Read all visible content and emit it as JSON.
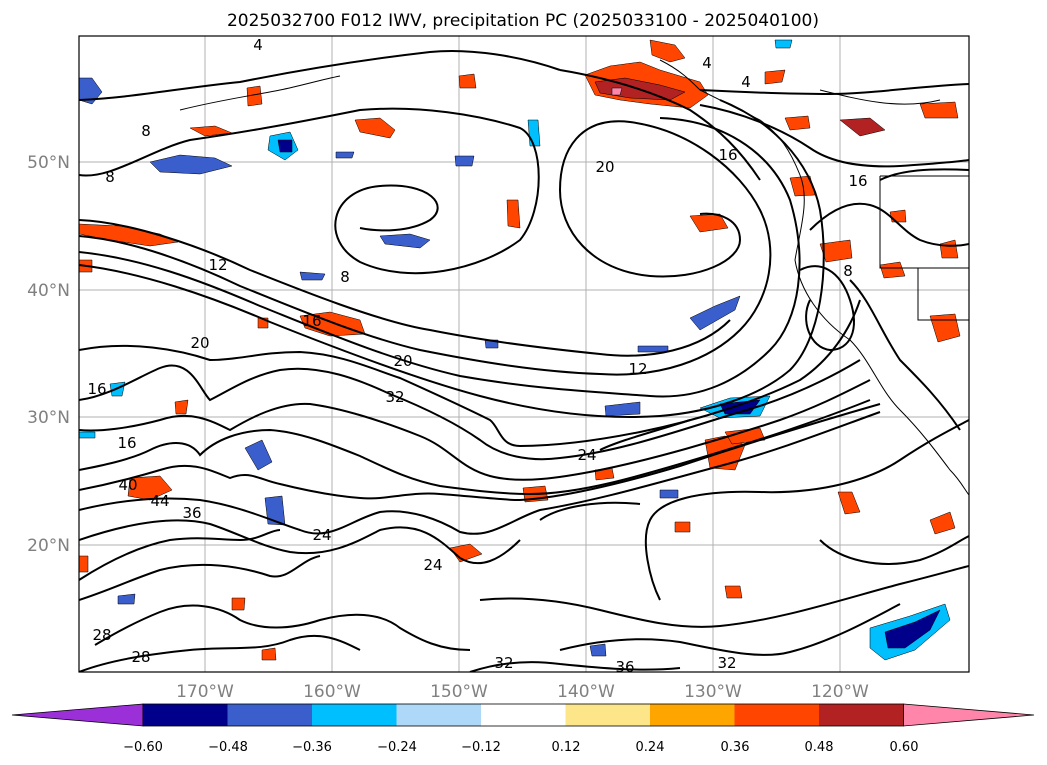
{
  "title": "2025032700 F012 IWV, precipitation PC (2025033100 - 2025040100)",
  "map": {
    "lon_labels": [
      "170°W",
      "160°W",
      "150°W",
      "140°W",
      "130°W",
      "120°W"
    ],
    "lat_labels": [
      "50°N",
      "40°N",
      "30°N",
      "20°N"
    ],
    "contour_labels": [
      "4",
      "4",
      "8",
      "8",
      "12",
      "12",
      "16",
      "16",
      "16",
      "16",
      "20",
      "20",
      "20",
      "24",
      "24",
      "24",
      "28",
      "28",
      "32",
      "32",
      "32",
      "36",
      "36",
      "40",
      "44",
      "4",
      "8",
      "8",
      "16"
    ]
  },
  "colorbar": {
    "ticks": [
      "−0.60",
      "−0.48",
      "−0.36",
      "−0.24",
      "−0.12",
      "0.12",
      "0.24",
      "0.36",
      "0.48",
      "0.60"
    ],
    "colors": [
      "#9b30d9",
      "#00008b",
      "#3a5fcd",
      "#00bfff",
      "#add8f7",
      "#ffffff",
      "#fde68a",
      "#ffa500",
      "#ff4500",
      "#b22222",
      "#ff85aa"
    ]
  }
}
